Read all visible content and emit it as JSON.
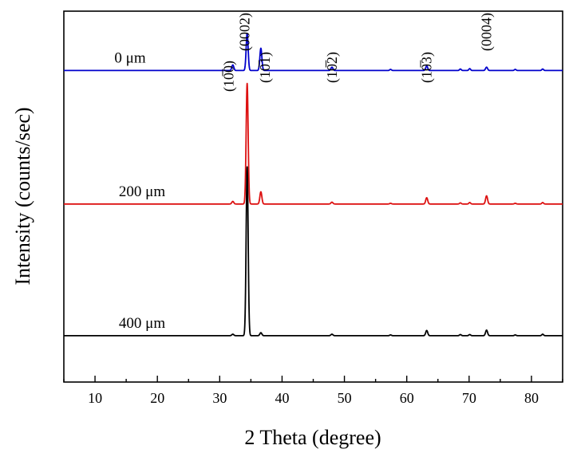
{
  "chart_data": {
    "type": "line",
    "title": "",
    "xlabel": "2 Theta (degree)",
    "ylabel": "Intensity (counts/sec)",
    "xlim": [
      5,
      85
    ],
    "xticks": [
      10,
      20,
      30,
      40,
      50,
      60,
      70,
      80
    ],
    "ylim": [
      0,
      10
    ],
    "grid": false,
    "peaks_2theta": [
      32.1,
      34.4,
      36.6,
      48.0,
      63.2,
      72.8
    ],
    "minor_peaks_2theta": [
      57.4,
      68.6,
      70.1,
      77.4,
      81.8
    ],
    "peak_labels": [
      {
        "text": "(10̅0)",
        "x": 32.1
      },
      {
        "text": "(0002)",
        "x": 34.4
      },
      {
        "text": "(10̅1)",
        "x": 36.6
      },
      {
        "text": "(10̅2)",
        "x": 48.0
      },
      {
        "text": "(10̅3)",
        "x": 63.2
      },
      {
        "text": "(0004)",
        "x": 72.8
      }
    ],
    "series": [
      {
        "name": "0 μm",
        "color": "#0000cc",
        "offset": 8.4,
        "intensities": [
          0.15,
          1.0,
          0.6,
          0.09,
          0.12,
          0.09
        ],
        "minor": [
          0.03,
          0.04,
          0.05,
          0.03,
          0.04
        ]
      },
      {
        "name": "200 μm",
        "color": "#dd1111",
        "offset": 4.8,
        "intensities": [
          0.07,
          3.25,
          0.33,
          0.05,
          0.17,
          0.22
        ],
        "minor": [
          0.02,
          0.03,
          0.04,
          0.02,
          0.04
        ]
      },
      {
        "name": "400 μm",
        "color": "#000000",
        "offset": 1.25,
        "intensities": [
          0.04,
          4.55,
          0.08,
          0.04,
          0.14,
          0.15
        ],
        "minor": [
          0.02,
          0.03,
          0.03,
          0.02,
          0.04
        ]
      }
    ]
  }
}
